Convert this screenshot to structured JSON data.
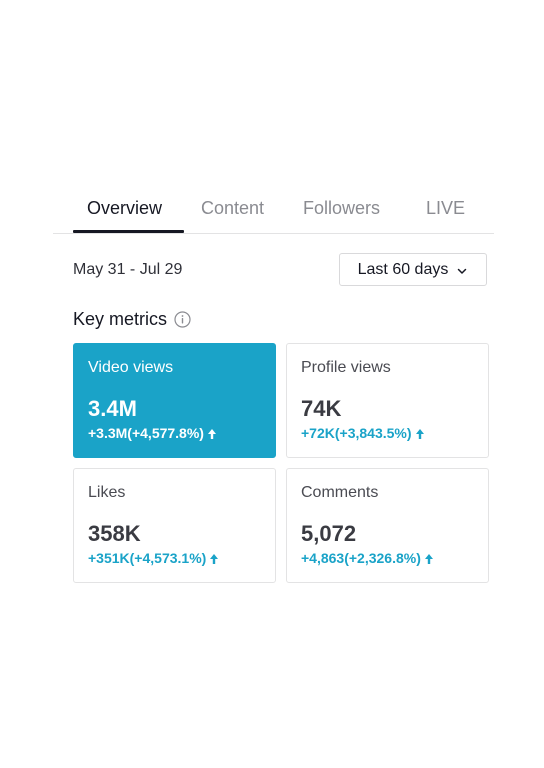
{
  "tabs": [
    {
      "label": "Overview",
      "active": true
    },
    {
      "label": "Content",
      "active": false
    },
    {
      "label": "Followers",
      "active": false
    },
    {
      "label": "LIVE",
      "active": false
    }
  ],
  "date_range": "May 31 - Jul 29",
  "period_select": {
    "selected": "Last 60 days",
    "icon": "chevron-down-icon"
  },
  "key_metrics": {
    "title": "Key metrics",
    "info_icon": "info-icon",
    "cards": [
      {
        "label": "Video views",
        "value": "3.4M",
        "change": "+3.3M(+4,577.8%)",
        "selected": true
      },
      {
        "label": "Profile views",
        "value": "74K",
        "change": "+72K(+3,843.5%)",
        "selected": false
      },
      {
        "label": "Likes",
        "value": "358K",
        "change": "+351K(+4,573.1%)",
        "selected": false
      },
      {
        "label": "Comments",
        "value": "5,072",
        "change": "+4,863(+2,326.8%)",
        "selected": false
      }
    ]
  },
  "colors": {
    "accent": "#1aa3c8",
    "text": "#161823",
    "muted": "#8a8b91"
  }
}
